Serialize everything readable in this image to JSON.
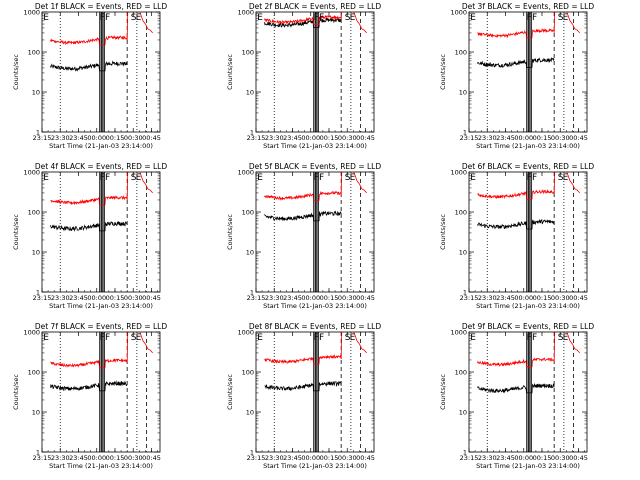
{
  "chart_data": {
    "type": "line",
    "layout": "3x3 grid",
    "y_scale": "log",
    "ylim": [
      1,
      1000
    ],
    "y_ticks": [
      "1",
      "10",
      "100",
      "1000"
    ],
    "ylabel": "Counts/sec",
    "xlabel": "Start Time (21-Jan-03 23:14:00)",
    "x_range": [
      "23:15",
      "00:52"
    ],
    "x_ticks": [
      "23:15",
      "23:30",
      "23:45",
      "00:00",
      "00:15",
      "00:30",
      "00:45"
    ],
    "series_colors": {
      "events": "#000000",
      "lld": "#ff0000"
    },
    "markers": [
      "E",
      "FF",
      "S",
      "E"
    ],
    "panels": [
      {
        "title": "Det 1f BLACK = Events, RED = LLD",
        "lld_level": 200,
        "events_level": 45
      },
      {
        "title": "Det 2f BLACK = Events, RED = LLD",
        "lld_level": 650,
        "events_level": 550
      },
      {
        "title": "Det 3f BLACK = Events, RED = LLD",
        "lld_level": 300,
        "events_level": 55
      },
      {
        "title": "Det 4f BLACK = Events, RED = LLD",
        "lld_level": 200,
        "events_level": 45
      },
      {
        "title": "Det 5f BLACK = Events, RED = LLD",
        "lld_level": 260,
        "events_level": 80
      },
      {
        "title": "Det 6f BLACK = Events, RED = LLD",
        "lld_level": 280,
        "events_level": 50
      },
      {
        "title": "Det 7f BLACK = Events, RED = LLD",
        "lld_level": 170,
        "events_level": 45
      },
      {
        "title": "Det 8f BLACK = Events, RED = LLD",
        "lld_level": 210,
        "events_level": 45
      },
      {
        "title": "Det 9f BLACK = Events, RED = LLD",
        "lld_level": 180,
        "events_level": 40
      }
    ]
  }
}
